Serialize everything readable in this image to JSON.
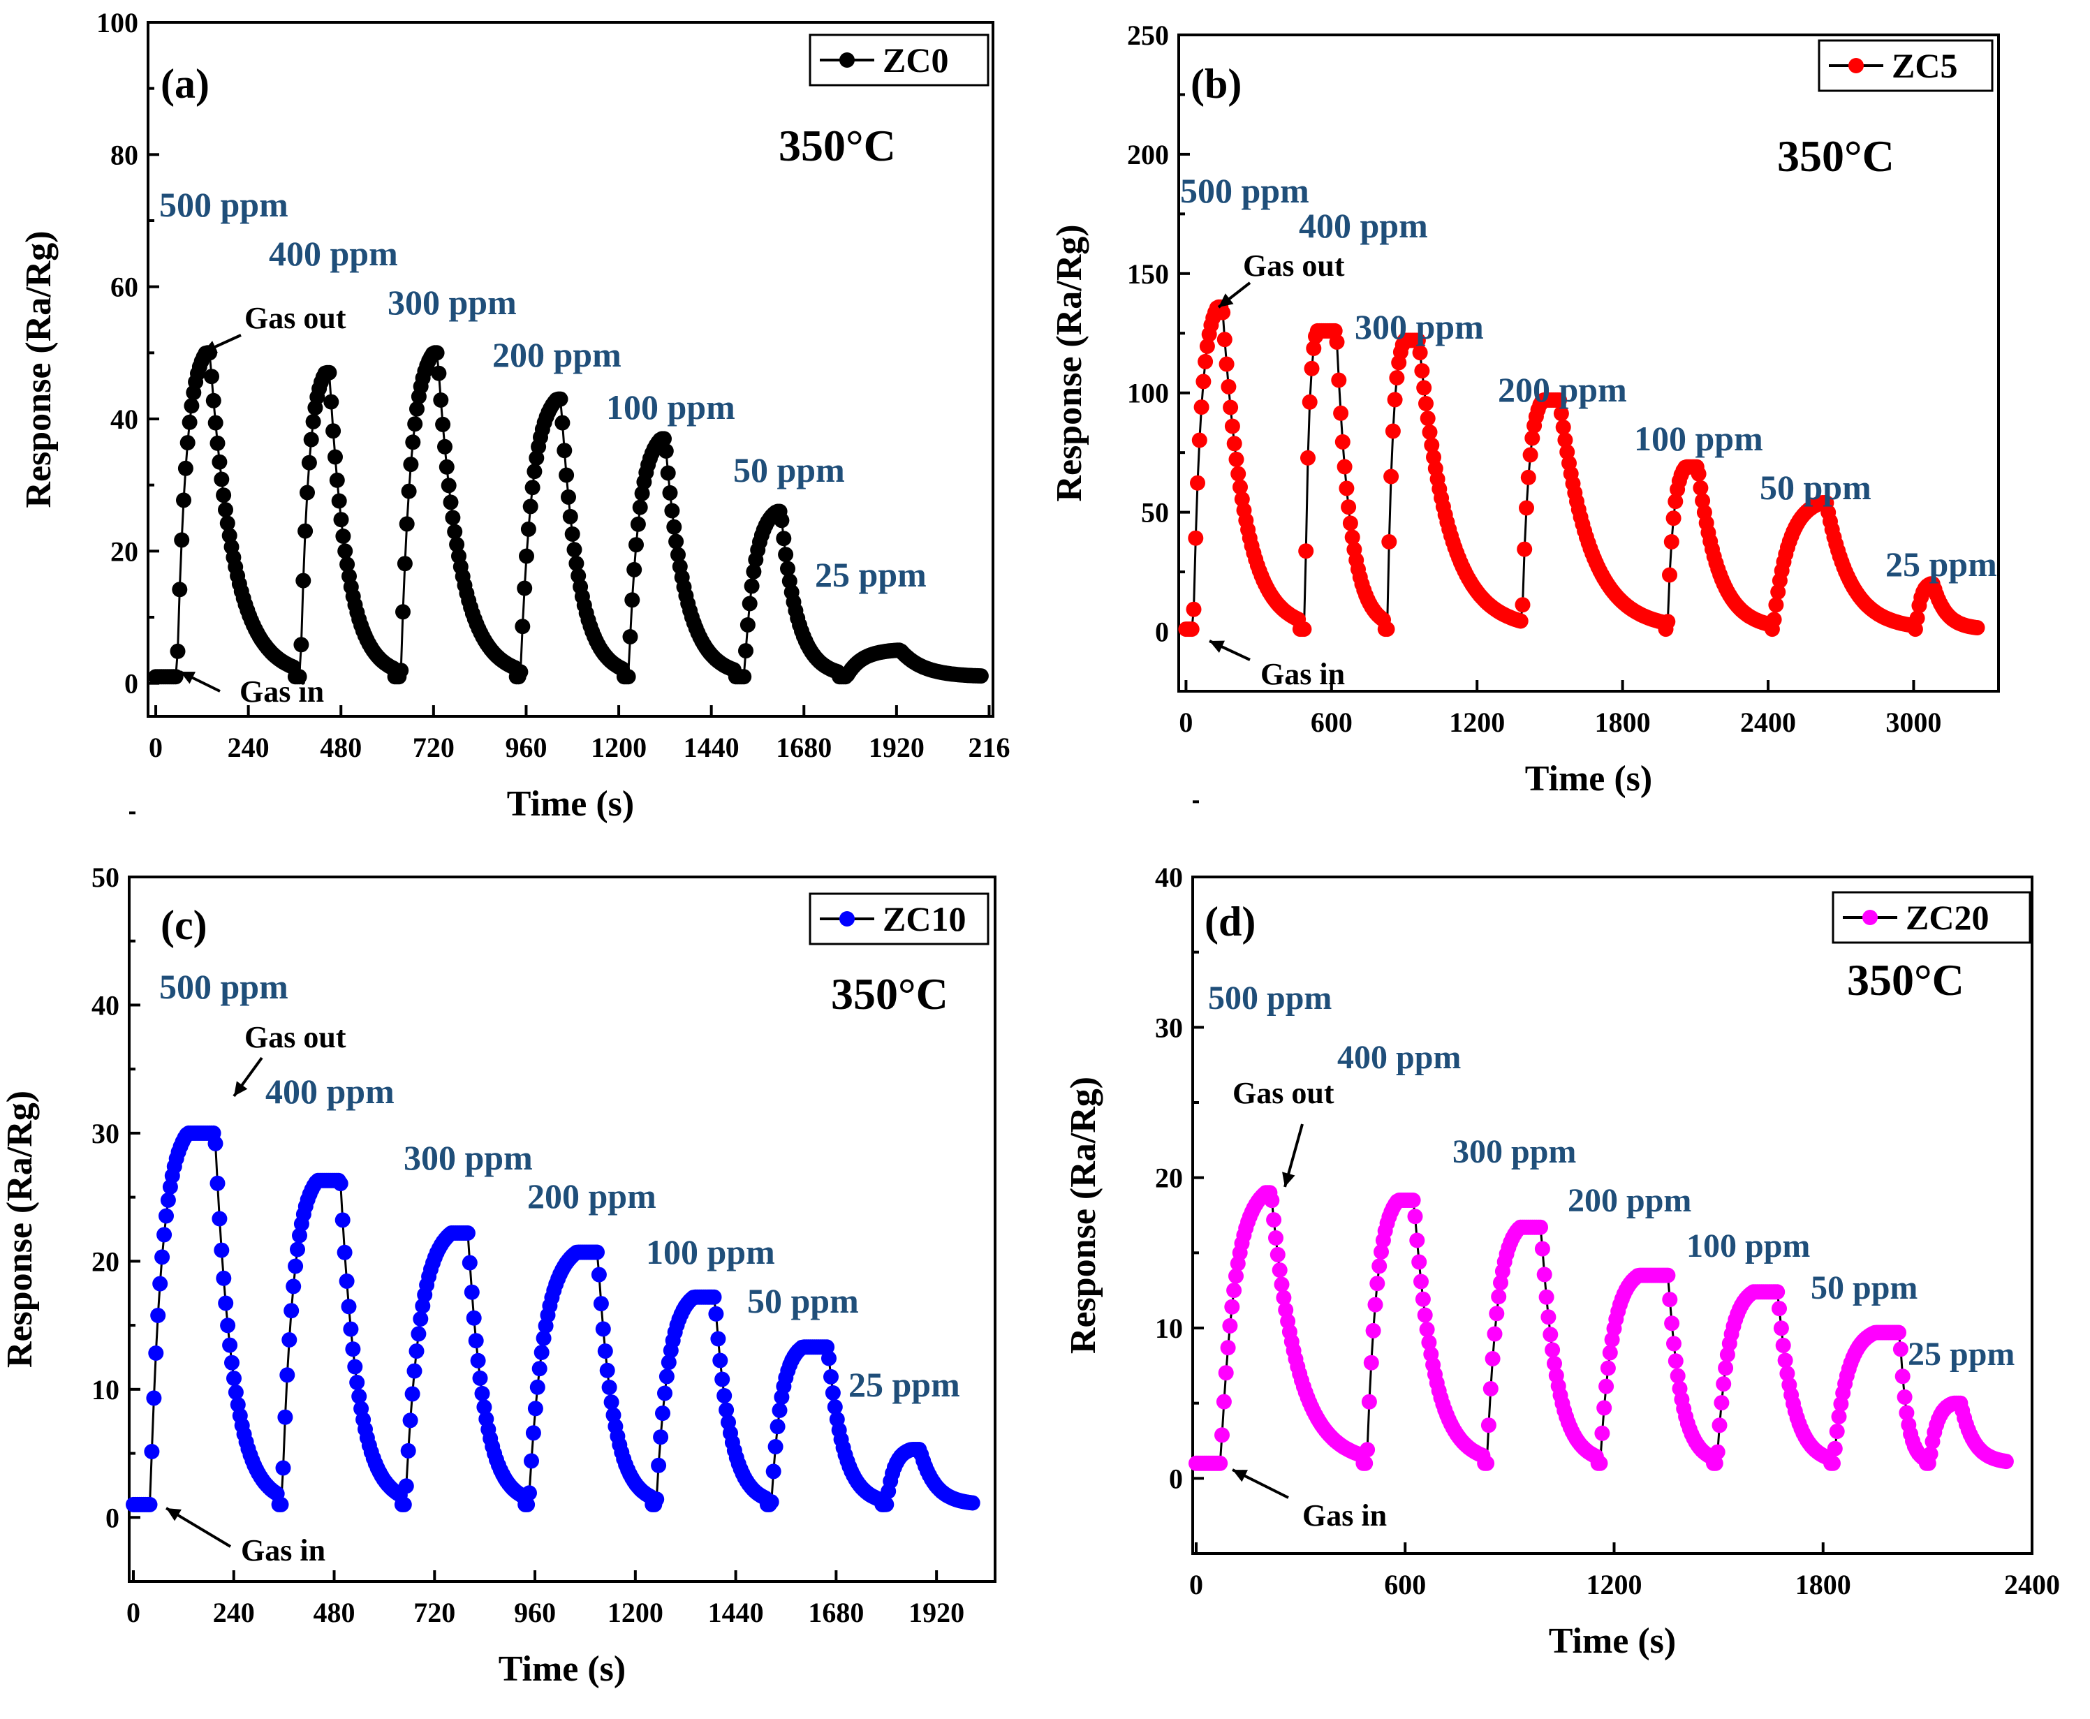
{
  "chart_data": [
    {
      "type": "scatter",
      "panel_label": "(a)",
      "temperature": "350°C",
      "legend": "ZC0",
      "color": "#000000",
      "xlabel": "Time (s)",
      "ylabel": "Response (Ra/Rg)",
      "xlim": [
        -20,
        2170
      ],
      "ylim": [
        -5,
        100
      ],
      "xticks": [
        "0",
        "240",
        "480",
        "720",
        "960",
        "1200",
        "1440",
        "1680",
        "1920",
        "216"
      ],
      "yticks": [
        "0",
        "20",
        "40",
        "60",
        "80",
        "100"
      ],
      "baseline": 1,
      "cycles": [
        {
          "label": "500 ppm",
          "on": 55,
          "peak_t": 130,
          "peak": 50,
          "off": 140,
          "end": 360
        },
        {
          "label": "400 ppm",
          "on": 375,
          "peak_t": 440,
          "peak": 47,
          "off": 450,
          "end": 615
        },
        {
          "label": "300 ppm",
          "on": 635,
          "peak_t": 720,
          "peak": 50,
          "off": 730,
          "end": 930
        },
        {
          "label": "200 ppm",
          "on": 945,
          "peak_t": 1040,
          "peak": 43,
          "off": 1050,
          "end": 1210
        },
        {
          "label": "100 ppm",
          "on": 1225,
          "peak_t": 1310,
          "peak": 37,
          "off": 1320,
          "end": 1500
        },
        {
          "label": "50 ppm",
          "on": 1525,
          "peak_t": 1610,
          "peak": 26,
          "off": 1620,
          "end": 1770
        },
        {
          "label": "25 ppm",
          "on": 1790,
          "peak_t": 1920,
          "peak": 5,
          "off": 1930,
          "end": 2140
        }
      ],
      "annotations": {
        "gas_out": "Gas out",
        "gas_in": "Gas in"
      }
    },
    {
      "type": "scatter",
      "panel_label": "(b)",
      "temperature": "350°C",
      "legend": "ZC5",
      "color": "#ff0000",
      "xlabel": "Time (s)",
      "ylabel": "Response (Ra/Rg)",
      "xlim": [
        -30,
        3350
      ],
      "ylim": [
        -25,
        250
      ],
      "xticks": [
        "0",
        "600",
        "1200",
        "1800",
        "2400",
        "3000"
      ],
      "yticks": [
        "0",
        "50",
        "100",
        "150",
        "200",
        "250"
      ],
      "baseline": 1,
      "cycles": [
        {
          "label": "500 ppm",
          "on": 30,
          "peak_t": 130,
          "peak": 136,
          "off": 150,
          "end": 470
        },
        {
          "label": "400 ppm",
          "on": 490,
          "peak_t": 540,
          "peak": 126,
          "off": 620,
          "end": 820
        },
        {
          "label": "300 ppm",
          "on": 830,
          "peak_t": 900,
          "peak": 122,
          "off": 960,
          "end": 1380
        },
        {
          "label": "200 ppm",
          "on": 1385,
          "peak_t": 1470,
          "peak": 97,
          "off": 1540,
          "end": 1975
        },
        {
          "label": "100 ppm",
          "on": 1985,
          "peak_t": 2060,
          "peak": 69,
          "off": 2110,
          "end": 2410
        },
        {
          "label": "50 ppm",
          "on": 2420,
          "peak_t": 2620,
          "peak": 54,
          "off": 2640,
          "end": 3000
        },
        {
          "label": "25 ppm",
          "on": 3010,
          "peak_t": 3070,
          "peak": 20,
          "off": 3080,
          "end": 3270
        }
      ],
      "annotations": {
        "gas_out": "Gas out",
        "gas_in": "Gas in"
      }
    },
    {
      "type": "scatter",
      "panel_label": "(c)",
      "temperature": "350°C",
      "legend": "ZC10",
      "color": "#0000ff",
      "xlabel": "Time (s)",
      "ylabel": "Response (Ra/Rg)",
      "xlim": [
        -10,
        2060
      ],
      "ylim": [
        -5,
        50
      ],
      "xticks": [
        "0",
        "240",
        "480",
        "720",
        "960",
        "1200",
        "1440",
        "1680",
        "1920"
      ],
      "yticks": [
        "0",
        "10",
        "20",
        "30",
        "40",
        "50"
      ],
      "baseline": 1,
      "cycles": [
        {
          "label": "500 ppm",
          "on": 40,
          "peak_t": 130,
          "peak": 30,
          "off": 195,
          "end": 345
        },
        {
          "label": "400 ppm",
          "on": 355,
          "peak_t": 440,
          "peak": 26.3,
          "off": 495,
          "end": 640
        },
        {
          "label": "300 ppm",
          "on": 650,
          "peak_t": 760,
          "peak": 22.2,
          "off": 800,
          "end": 935
        },
        {
          "label": "200 ppm",
          "on": 945,
          "peak_t": 1060,
          "peak": 20.7,
          "off": 1110,
          "end": 1240
        },
        {
          "label": "100 ppm",
          "on": 1250,
          "peak_t": 1340,
          "peak": 17.2,
          "off": 1390,
          "end": 1515
        },
        {
          "label": "50 ppm",
          "on": 1525,
          "peak_t": 1600,
          "peak": 13.3,
          "off": 1660,
          "end": 1790
        },
        {
          "label": "25 ppm",
          "on": 1800,
          "peak_t": 1860,
          "peak": 5.3,
          "off": 1880,
          "end": 2010
        }
      ],
      "annotations": {
        "gas_out": "Gas out",
        "gas_in": "Gas in"
      }
    },
    {
      "type": "scatter",
      "panel_label": "(d)",
      "temperature": "350°C",
      "legend": "ZC20",
      "color": "#ff00ff",
      "xlabel": "Time (s)",
      "ylabel": "Response (Ra/Rg)",
      "xlim": [
        -10,
        2400
      ],
      "ylim": [
        -5,
        40
      ],
      "xticks": [
        "0",
        "600",
        "1200",
        "1800",
        "2400"
      ],
      "yticks": [
        "0",
        "10",
        "20",
        "30",
        "40"
      ],
      "baseline": 1,
      "cycles": [
        {
          "label": "500 ppm",
          "on": 70,
          "peak_t": 200,
          "peak": 19,
          "off": 215,
          "end": 480
        },
        {
          "label": "400 ppm",
          "on": 490,
          "peak_t": 580,
          "peak": 18.5,
          "off": 625,
          "end": 825
        },
        {
          "label": "300 ppm",
          "on": 835,
          "peak_t": 930,
          "peak": 16.7,
          "off": 990,
          "end": 1150
        },
        {
          "label": "200 ppm",
          "on": 1160,
          "peak_t": 1270,
          "peak": 13.5,
          "off": 1355,
          "end": 1485
        },
        {
          "label": "100 ppm",
          "on": 1495,
          "peak_t": 1600,
          "peak": 12.4,
          "off": 1670,
          "end": 1820
        },
        {
          "label": "50 ppm",
          "on": 1830,
          "peak_t": 1950,
          "peak": 9.7,
          "off": 2020,
          "end": 2095
        },
        {
          "label": "25 ppm",
          "on": 2105,
          "peak_t": 2175,
          "peak": 5,
          "off": 2195,
          "end": 2330
        }
      ],
      "annotations": {
        "gas_out": "Gas out",
        "gas_in": "Gas in"
      }
    }
  ]
}
